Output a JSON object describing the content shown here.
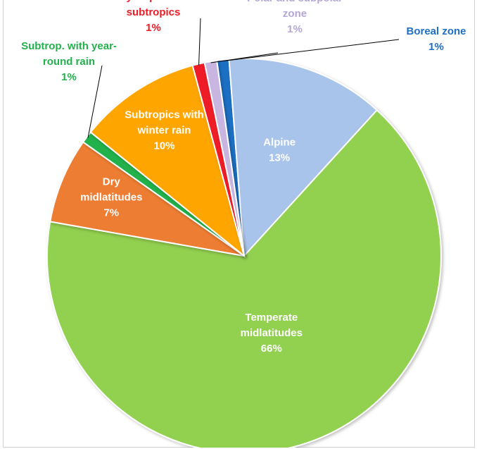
{
  "chart_data": {
    "type": "pie",
    "title": "",
    "slices": [
      {
        "label": "Boreal zone",
        "value": 1,
        "display": "1%",
        "color": "#1f6fc4",
        "label_color": "#1f6fc4"
      },
      {
        "label": "Alpine",
        "value": 13,
        "display": "13%",
        "color": "#a9c4eb",
        "label_color": "#ffffff"
      },
      {
        "label": "Temperate midlatitudes",
        "value": 66,
        "display": "66%",
        "color": "#92d050",
        "label_color": "#ffffff"
      },
      {
        "label": "Dry midlatitudes",
        "value": 7,
        "display": "7%",
        "color": "#ed7d31",
        "label_color": "#ffffff"
      },
      {
        "label": "Subtrop. with year-round rain",
        "value": 1,
        "display": "1%",
        "color": "#22b14c",
        "label_color": "#22b14c"
      },
      {
        "label": "Subtropics with winter rain",
        "value": 10,
        "display": "10%",
        "color": "#ffa500",
        "label_color": "#ffffff"
      },
      {
        "label": "Dry tropics and subtropics",
        "value": 1,
        "display": "1%",
        "color": "#ee1c25",
        "label_color": "#ee1c25"
      },
      {
        "label": "Polar and subpolar zone",
        "value": 1,
        "display": "1%",
        "color": "#c8b6e0",
        "label_color": "#b4a7d6"
      }
    ],
    "start_angle_deg": -8,
    "direction": "clockwise",
    "labels_outside": [
      "Boreal zone",
      "Subtrop. with year-round rain",
      "Dry tropics and subtropics",
      "Polar and subpolar zone"
    ]
  }
}
